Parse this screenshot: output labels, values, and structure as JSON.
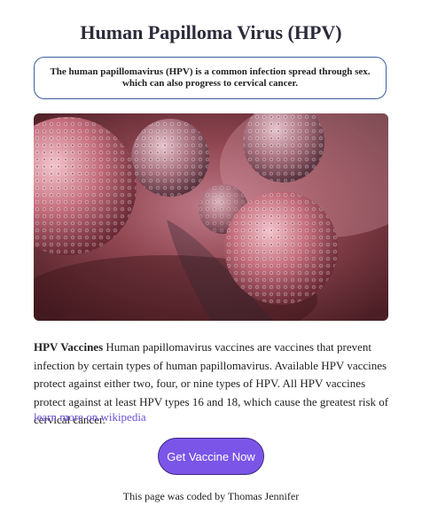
{
  "page": {
    "title": "Human Papilloma Virus (HPV)",
    "intro": "The human papillomavirus (HPV) is a common infection spread through sex. which can also progress to cervical cancer."
  },
  "image": {
    "subject": "hpv-virus-illustration"
  },
  "description": {
    "lead": "HPV Vaccines",
    "body": " Human papillomavirus vaccines are vaccines that prevent infection by certain types of human papillomavirus. Available HPV vaccines protect against either two, four, or nine types of HPV. All HPV vaccines protect against at least HPV types 16 and 18, which cause the greatest risk of cervical cancer."
  },
  "link": {
    "label": "learn more on wikipedia"
  },
  "cta": {
    "label": "Get Vaccine Now"
  },
  "footer": {
    "text": "This page was coded by Thomas Jennifer"
  },
  "colors": {
    "accent": "#7b55e8",
    "link": "#6a4fd8",
    "box_border": "#3a5f9e"
  }
}
